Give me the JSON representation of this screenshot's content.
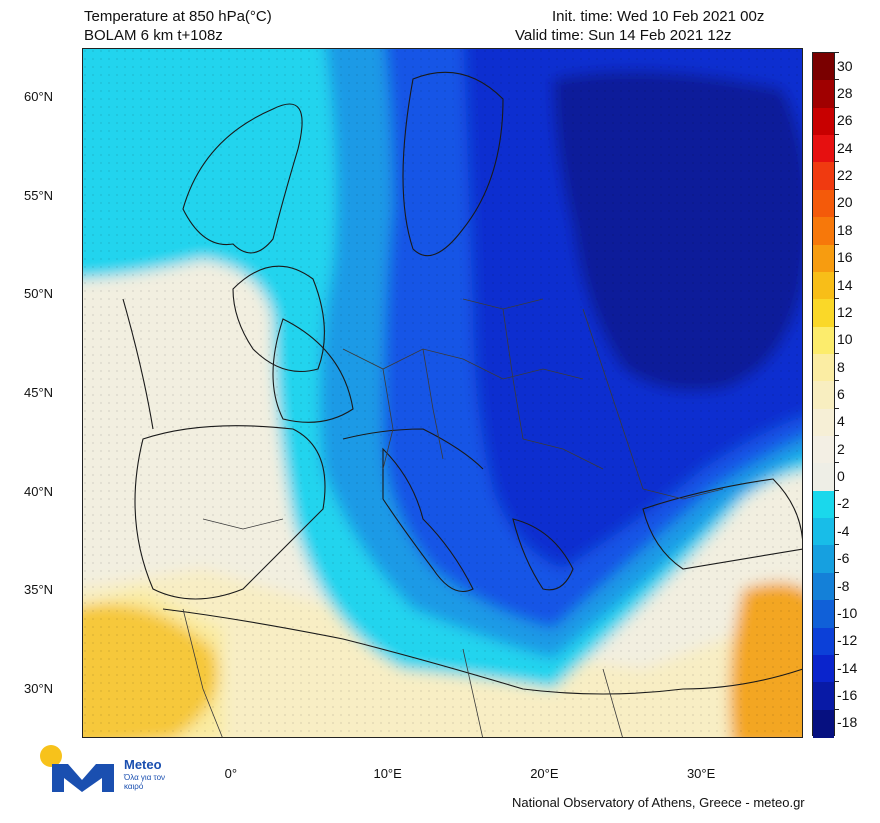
{
  "header": {
    "title_line1": "Temperature at 850 hPa(°C)",
    "title_line2": "BOLAM 6 km t+108z",
    "init_time": "Init. time: Wed 10 Feb 2021 00z",
    "valid_time": "Valid time: Sun 14 Feb 2021 12z"
  },
  "axes": {
    "lat_labels": [
      "60°N",
      "55°N",
      "50°N",
      "45°N",
      "40°N",
      "35°N",
      "30°N"
    ],
    "lat_values": [
      60,
      55,
      50,
      45,
      40,
      35,
      30
    ],
    "lon_labels": [
      "0°",
      "10°E",
      "20°E",
      "30°E"
    ],
    "lon_values": [
      0,
      10,
      20,
      30
    ],
    "lat_range": [
      27.5,
      62.5
    ],
    "lon_range": [
      -9.5,
      36.5
    ]
  },
  "legend": {
    "levels": [
      30,
      28,
      26,
      24,
      22,
      20,
      18,
      16,
      14,
      12,
      10,
      8,
      6,
      4,
      2,
      0,
      -2,
      -4,
      -6,
      -8,
      -10,
      -12,
      -14,
      -16,
      -18
    ],
    "level_labels": [
      "30",
      "28",
      "26",
      "24",
      "22",
      "20",
      "18",
      "16",
      "14",
      "12",
      "10",
      "8",
      "6",
      "4",
      "2",
      "0",
      "-2",
      "-4",
      "-6",
      "-8",
      "-10",
      "-12",
      "-14",
      "-16",
      "-18"
    ],
    "colors": [
      "#7a0000",
      "#a00000",
      "#c80000",
      "#e61010",
      "#f03a10",
      "#f45a0a",
      "#f7780a",
      "#f79c10",
      "#f8be18",
      "#fad828",
      "#fcec6c",
      "#fbeda3",
      "#f8eec0",
      "#f6efd6",
      "#f3efe4",
      "#eeeee6",
      "#1ad8ec",
      "#18bde8",
      "#16a0e0",
      "#1480d8",
      "#1060d8",
      "#0c40d8",
      "#0a24cc",
      "#081aa6",
      "#061080"
    ]
  },
  "map": {
    "field_colors": {
      "cold_extreme": "#0a1a9a",
      "cold_deep": "#0e2ed0",
      "cold_mid": "#1355e6",
      "cold_light": "#1a9ae6",
      "cyan": "#22d4ee",
      "zero": "#f2efe0",
      "warm_light": "#f8eec4",
      "warm_mid": "#faeba0",
      "warm_hot": "#f6c83a",
      "warm_extreme": "#f3a622",
      "coast": "#1a1a1a",
      "border": "#3a3a3a"
    }
  },
  "logo": {
    "brand": "Meteo",
    "tagline": "Όλα για τον καιρό",
    "circle_color": "#f7c21b",
    "mark_color": "#1a4fb0"
  },
  "footer": {
    "credit": "National Observatory of Athens, Greece - meteo.gr"
  }
}
